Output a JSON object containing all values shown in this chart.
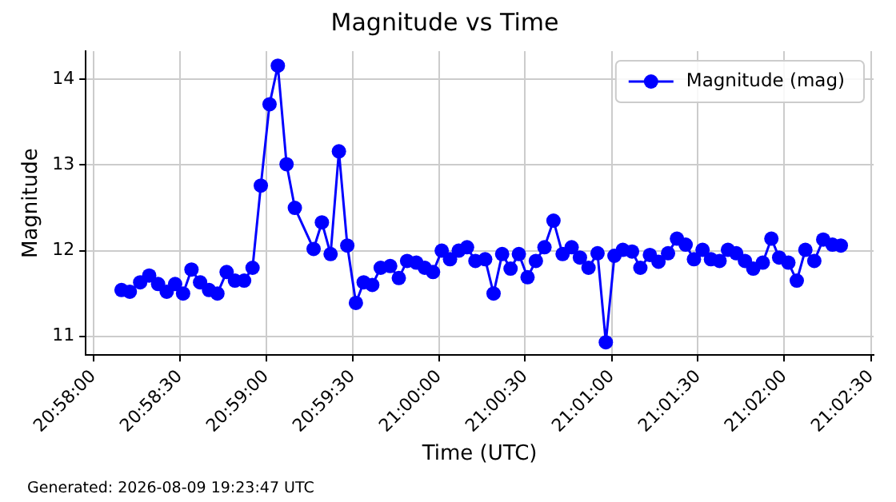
{
  "chart_data": {
    "type": "line",
    "title": "Magnitude vs Time",
    "xlabel": "Time (UTC)",
    "ylabel": "Magnitude",
    "annotations": [
      "Generated: 2026-08-09 19:23:47 UTC"
    ],
    "x": [
      20.96939,
      20.97019,
      20.97119,
      20.97206,
      20.97292,
      20.97375,
      20.97456,
      20.97533,
      20.97614,
      20.97697,
      20.97783,
      20.97864,
      20.97953,
      20.98033,
      20.98122,
      20.98203,
      20.98283,
      20.98367,
      20.98447,
      20.98531,
      20.98611,
      20.98792,
      20.98872,
      20.98956,
      20.99036,
      20.99117,
      20.992,
      20.99275,
      20.99358,
      20.99439,
      20.99531,
      20.99614,
      20.99694,
      20.99783,
      20.99864,
      20.99944,
      21.00028,
      21.00108,
      21.00192,
      21.00272,
      21.00353,
      21.00447,
      21.00528,
      21.00611,
      21.00692,
      21.00772,
      21.00856,
      21.00936,
      21.01019,
      21.01106,
      21.01194,
      21.01281,
      21.01361,
      21.01444,
      21.01531,
      21.01611,
      21.01694,
      21.01775,
      21.01864,
      21.01944,
      21.02036,
      21.02119,
      21.02211,
      21.02297,
      21.02381,
      21.02461,
      21.02544,
      21.02625,
      21.02708,
      21.02789,
      21.02869,
      21.02953,
      21.03033,
      21.03125,
      21.03208,
      21.03283,
      21.03372,
      21.03453,
      21.03536,
      21.03622,
      21.03708,
      21.03797,
      21.03878
    ],
    "series": [
      {
        "name": "Magnitude (mag)",
        "color": "#0000ff",
        "values": [
          11.54,
          11.52,
          11.63,
          11.71,
          11.61,
          11.52,
          11.61,
          11.5,
          11.78,
          11.63,
          11.54,
          11.5,
          11.75,
          11.65,
          11.65,
          11.8,
          12.76,
          13.71,
          14.16,
          13.01,
          12.5,
          12.02,
          12.33,
          11.96,
          13.16,
          12.06,
          11.39,
          11.63,
          11.6,
          11.8,
          11.82,
          11.68,
          11.88,
          11.86,
          11.8,
          11.75,
          12.0,
          11.9,
          12.0,
          12.04,
          11.88,
          11.9,
          11.5,
          11.96,
          11.79,
          11.96,
          11.69,
          11.88,
          12.04,
          12.35,
          11.96,
          12.04,
          11.92,
          11.8,
          11.97,
          10.93,
          11.94,
          12.01,
          11.99,
          11.8,
          11.95,
          11.87,
          11.97,
          12.14,
          12.07,
          11.9,
          12.01,
          11.9,
          11.88,
          12.01,
          11.97,
          11.88,
          11.79,
          11.86,
          12.14,
          11.92,
          11.86,
          11.65,
          12.01,
          11.88,
          12.13,
          12.07,
          12.06
        ]
      }
    ],
    "xlim": [
      20.96594,
      21.04194
    ],
    "xticks": [
      {
        "value": 20.96667,
        "label": "20:58:00"
      },
      {
        "value": 20.975,
        "label": "20:58:30"
      },
      {
        "value": 20.98333,
        "label": "20:59:00"
      },
      {
        "value": 20.99167,
        "label": "20:59:30"
      },
      {
        "value": 21,
        "label": "21:00:00"
      },
      {
        "value": 21.00833,
        "label": "21:00:30"
      },
      {
        "value": 21.01667,
        "label": "21:01:00"
      },
      {
        "value": 21.025,
        "label": "21:01:30"
      },
      {
        "value": 21.03333,
        "label": "21:02:00"
      },
      {
        "value": 21.04167,
        "label": "21:02:30"
      }
    ],
    "ylim": [
      10.78,
      14.33
    ],
    "yticks": [
      11,
      12,
      13,
      14
    ],
    "grid": true,
    "legend": "top right",
    "marker": "circle",
    "line_style": "solid"
  }
}
